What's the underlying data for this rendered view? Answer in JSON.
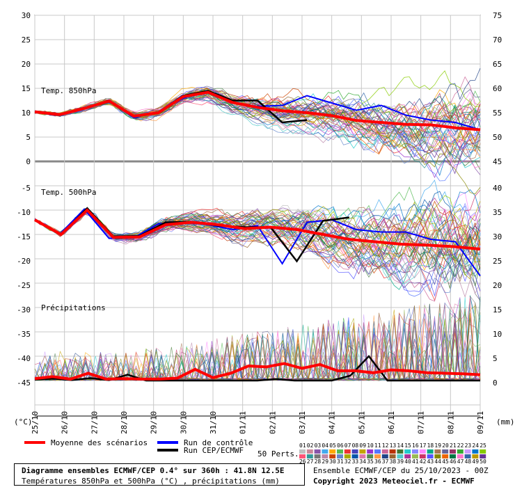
{
  "chart_data": {
    "type": "line",
    "panels": [
      {
        "label": "Temp. 850hPa",
        "left_ticks": [
          "30",
          "25",
          "20",
          "15",
          "10",
          "5",
          "0"
        ],
        "right_ticks": [
          "75",
          "70",
          "65",
          "60",
          "55",
          "50",
          "45"
        ]
      },
      {
        "label": "Temp. 500hPa",
        "left_ticks": [
          "-5",
          "-10",
          "-15",
          "-20",
          "-25"
        ],
        "right_ticks": [
          "40",
          "35",
          "30",
          "25",
          "20"
        ]
      },
      {
        "label": "Précipitations",
        "left_ticks": [
          "-30",
          "-35",
          "-40",
          "-45"
        ],
        "right_ticks": [
          "15",
          "10",
          "5",
          "0"
        ]
      }
    ],
    "x_dates": [
      "25/10",
      "26/10",
      "27/10",
      "28/10",
      "29/10",
      "30/10",
      "31/10",
      "01/11",
      "02/11",
      "03/11",
      "04/11",
      "05/11",
      "06/11",
      "07/11",
      "08/11",
      "09/11"
    ],
    "left_unit": "(°C)",
    "right_unit": "(mm)",
    "t850_mean": [
      10.2,
      9.6,
      10.9,
      12.4,
      9.3,
      10.0,
      13.3,
      14.2,
      12.1,
      11.1,
      10.4,
      10.0,
      9.4,
      8.4,
      8.0,
      7.6,
      7.5,
      6.9,
      6.5
    ],
    "t850_control": [
      10.3,
      9.6,
      10.8,
      12.6,
      9.0,
      10.1,
      13.0,
      14.5,
      12.0,
      11.3,
      11.5,
      13.5,
      12.0,
      10.5,
      11.5,
      9.5,
      8.5,
      8.0,
      6.5
    ],
    "t850_cep": [
      10.1,
      9.6,
      11.0,
      12.3,
      9.3,
      10.1,
      13.5,
      14.5,
      12.5,
      12.5,
      8.0,
      8.5,
      null,
      null,
      null,
      null,
      null,
      null,
      null
    ],
    "t500_mean": [
      -12.0,
      -15.0,
      -10.0,
      -15.6,
      -15.5,
      -13.0,
      -12.5,
      -13.0,
      -13.8,
      -13.5,
      -14.0,
      -15.0,
      -16.0,
      -16.5,
      -17.0,
      -17.2,
      -17.5,
      -18.0
    ],
    "t500_control": [
      -12.0,
      -15.0,
      -9.8,
      -15.8,
      -15.7,
      -12.8,
      -12.5,
      -13.0,
      -14.0,
      -13.2,
      -21.0,
      -12.5,
      -12.0,
      -14.0,
      -14.5,
      -14.5,
      -16.0,
      -16.5,
      -23.5
    ],
    "t500_cep": [
      -12.1,
      -15.1,
      -9.6,
      -15.4,
      -15.3,
      -12.5,
      -12.4,
      -13.2,
      -13.5,
      -13.5,
      -20.5,
      -12.2,
      -11.5,
      null,
      null,
      null,
      null,
      null
    ],
    "precip_mean": [
      0.4,
      0.8,
      0.3,
      1.5,
      0.3,
      0.4,
      0.3,
      0.3,
      0.5,
      2.3,
      0.6,
      1.5,
      3.0,
      2.8,
      3.5,
      2.5,
      3.3,
      2.0,
      2.0,
      1.6,
      2.2,
      2.0,
      1.6,
      1.5,
      1.4,
      1.2
    ],
    "precip_cep": [
      0.2,
      0.4,
      0.1,
      0.5,
      0.1,
      1.2,
      0.0,
      0.0,
      0.0,
      0.0,
      0.0,
      0.0,
      0.0,
      0.3,
      0.0,
      0.0,
      0.0,
      1.0,
      5.0,
      0.0,
      0.0,
      0.0,
      0.0,
      0.0,
      0.0
    ]
  },
  "legend": {
    "mean_label": "Moyenne des scénarios",
    "control_label": "Run de contrôle",
    "cep_label": "Run CEP/ECMWF",
    "perts_label": "50 Perts.",
    "pert_numbers_row1": [
      "01",
      "02",
      "03",
      "04",
      "05",
      "06",
      "07",
      "08",
      "09",
      "10",
      "11",
      "12",
      "13",
      "14",
      "15",
      "16",
      "17",
      "18",
      "19",
      "20",
      "21",
      "22",
      "23",
      "24",
      "25"
    ],
    "pert_numbers_row2": [
      "26",
      "27",
      "28",
      "29",
      "30",
      "31",
      "32",
      "33",
      "34",
      "35",
      "36",
      "37",
      "38",
      "39",
      "40",
      "41",
      "42",
      "43",
      "44",
      "45",
      "46",
      "47",
      "48",
      "49",
      "50"
    ],
    "pert_colors": [
      "#c0c0c0",
      "#cc8899",
      "#8855aa",
      "#44aaee",
      "#ffaa00",
      "#55bb55",
      "#ee3333",
      "#4444bb",
      "#c4a400",
      "#9933cc",
      "#5577ff",
      "#cc6699",
      "#bb3300",
      "#447733",
      "#22cccc",
      "#8888ff",
      "#ff88ff",
      "#00aa88",
      "#aa7755",
      "#666699",
      "#993366",
      "#33aa33",
      "#cc99ff",
      "#0077cc",
      "#88cc00",
      "#ff5577",
      "#339999",
      "#777777",
      "#bb88aa",
      "#cc4400",
      "#6688cc",
      "#aaaa00",
      "#0055aa",
      "#dd77aa",
      "#558855",
      "#ff9944",
      "#224488",
      "#996633",
      "#55cccc",
      "#aa3399",
      "#99bb55",
      "#cc3366",
      "#5555ff",
      "#888800",
      "#ee6600",
      "#007744",
      "#ff77cc",
      "#3366aa",
      "#bb9900",
      "#663399"
    ]
  },
  "colors": {
    "mean": "#ff0000",
    "control": "#0000ff",
    "cep": "#000000"
  },
  "footer": {
    "title": "Diagramme ensembles ECMWF/CEP 0.4° sur 360h : 41.8N 12.5E",
    "subtitle": "Températures 850hPa et 500hPa (°C) , précipitations (mm)",
    "run_info": "Ensemble ECMWF/CEP du 25/10/2023 - 00Z",
    "copyright": "Copyright 2023 Meteociel.fr - ECMWF"
  }
}
